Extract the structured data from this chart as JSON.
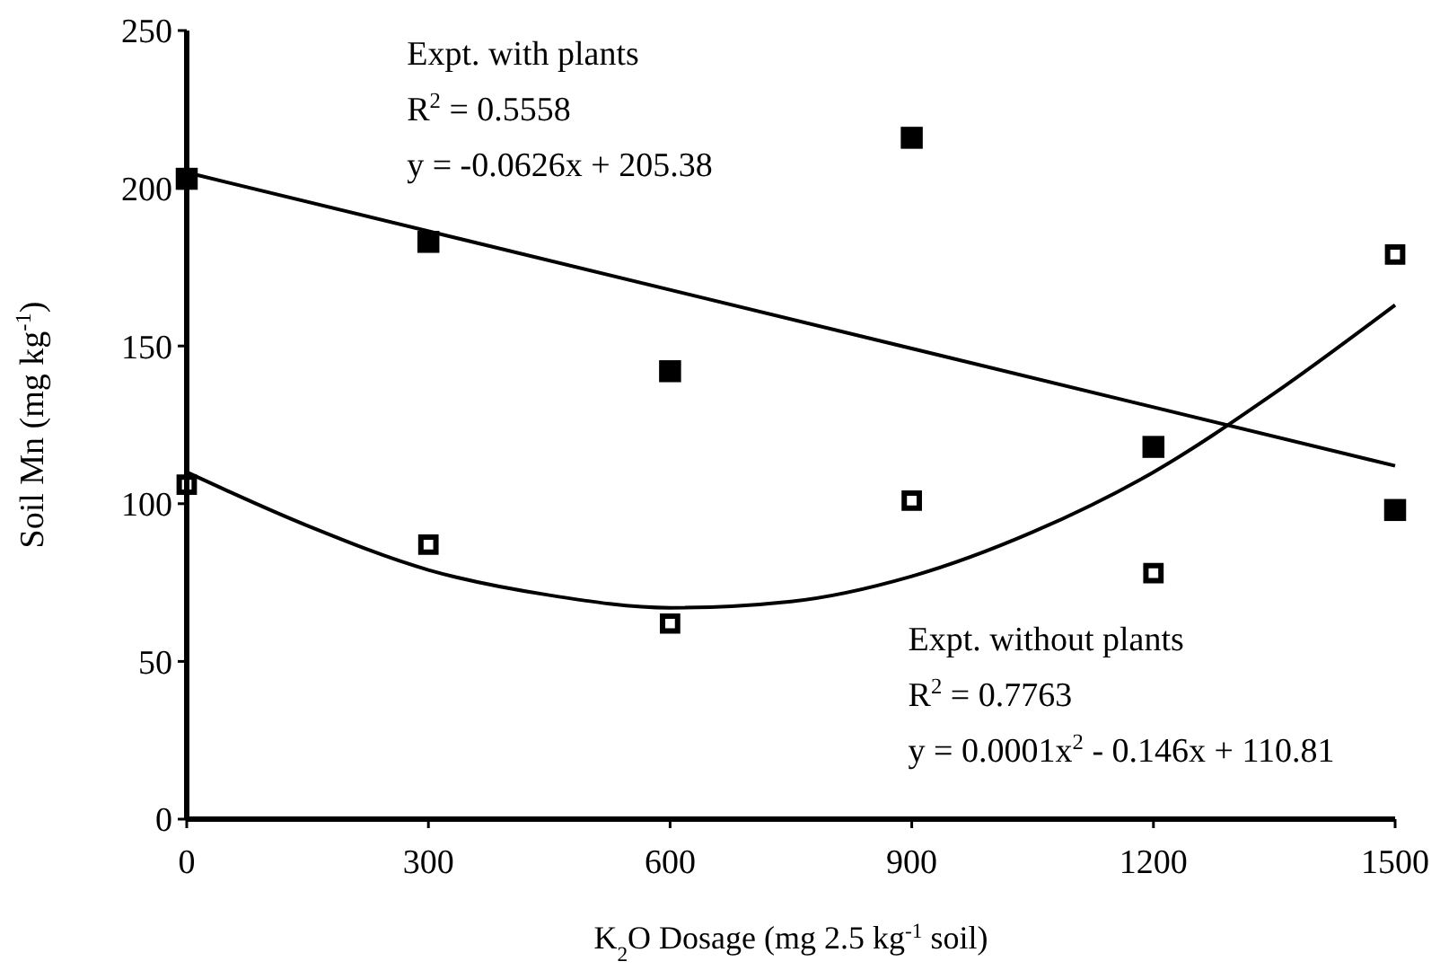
{
  "chart_data": {
    "type": "scatter",
    "xlabel": "K$_{2}$O Dosage (mg 2.5 kg$^{-1}$ soil)",
    "ylabel": "Soil Mn (mg kg$^{-1}$)",
    "x": [
      0,
      300,
      600,
      900,
      1200,
      1500
    ],
    "series": [
      {
        "color": "#000000",
        "marker": "square",
        "values": [
          203,
          183,
          142,
          216,
          118,
          98
        ]
      },
      {
        "color": "#000000",
        "marker": "square",
        "values": [
          106,
          87,
          62,
          101,
          78,
          179
        ]
      },
      {
        "type": "line",
        "color": "#000000",
        "x": [
          0,
          1500
        ],
        "values": [
          205,
          112
        ]
      },
      {
        "type": "line",
        "color": "#000000",
        "x": [
          0,
          150,
          300,
          450,
          600,
          750,
          900,
          1050,
          1200,
          1350,
          1500
        ],
        "values": [
          110,
          93,
          79,
          71,
          67,
          69,
          77,
          91,
          110,
          135,
          163
        ]
      }
    ],
    "annotations": [
      "Expt. with plants",
      "R$^{2}$ = 0.5558",
      "y = -0.0626x + 205.38",
      "Expt. without plants",
      "R$^{2}$ = 0.7763",
      "y = 0.0001x$^{2}$ - 0.146x + 110.81"
    ],
    "xlim": [
      0,
      1500
    ],
    "xticks": [
      0,
      300,
      600,
      900,
      1200,
      1500
    ],
    "ylim": [
      0,
      250
    ],
    "yticks": [
      0,
      50,
      100,
      150,
      200,
      250
    ],
    "grid": false,
    "line_style": "solid"
  }
}
